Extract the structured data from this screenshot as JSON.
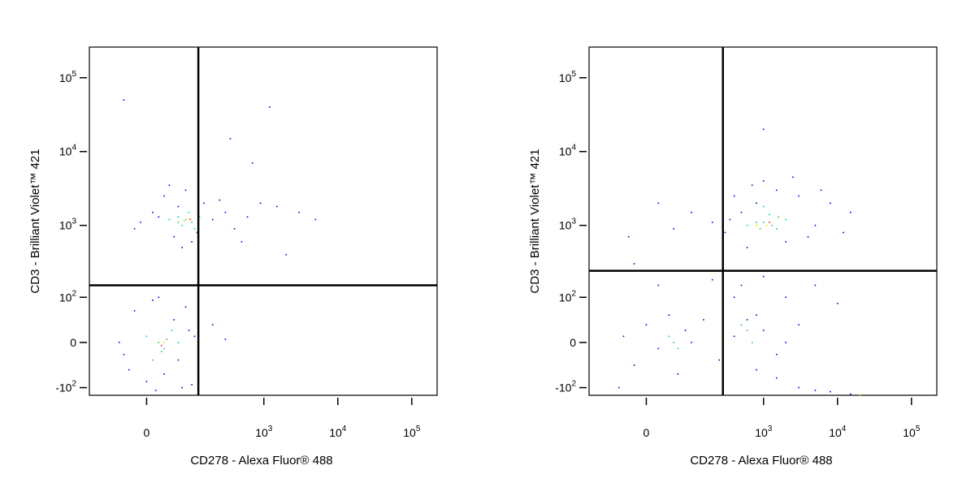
{
  "chart_data": [
    {
      "type": "scatter",
      "xlabel": "CD278 - Alexa Fluor® 488",
      "ylabel": "CD3 - Brilliant Violet™ 421",
      "xlim": [
        -150,
        220000
      ],
      "ylim": [
        -130,
        260000
      ],
      "xticks": [
        0,
        {
          "value": 1000,
          "label": "10",
          "sup": "3"
        },
        {
          "value": 10000,
          "label": "10",
          "sup": "4"
        },
        {
          "value": 100000,
          "label": "10",
          "sup": "5"
        }
      ],
      "yticks": [
        {
          "value": -100,
          "label": "-10",
          "sup": "2"
        },
        0,
        {
          "value": 100,
          "label": "10",
          "sup": "2"
        },
        {
          "value": 1000,
          "label": "10",
          "sup": "3"
        },
        {
          "value": 10000,
          "label": "10",
          "sup": "4"
        },
        {
          "value": 100000,
          "label": "10",
          "sup": "5"
        }
      ],
      "gates": {
        "x": 125,
        "y": 150
      },
      "series": [
        {
          "color": "#0000cc",
          "x": [
            -20,
            10,
            30,
            50,
            60,
            80,
            100,
            150,
            200,
            300,
            400,
            600,
            900,
            1500,
            3000,
            5000,
            -10,
            40,
            120,
            250,
            70,
            20,
            -40,
            350,
            700,
            1200,
            2000,
            500,
            -40,
            -20,
            0,
            10,
            30,
            50,
            70,
            90,
            -30,
            20,
            60,
            110,
            200,
            -50,
            80,
            15,
            300,
            100
          ],
          "y": [
            900,
            1500,
            2500,
            700,
            1800,
            3000,
            600,
            2000,
            1200,
            1500,
            900,
            1300,
            2000,
            1800,
            1500,
            1200,
            1100,
            3500,
            800,
            2200,
            500,
            1300,
            50000,
            15000,
            7000,
            40000,
            400,
            600,
            -20,
            60,
            -80,
            90,
            -60,
            40,
            -100,
            20,
            -50,
            100,
            -30,
            10,
            30,
            0,
            70,
            -110,
            5,
            -90
          ]
        },
        {
          "color": "#00c8c8",
          "x": [
            40,
            70,
            90,
            130,
            60,
            110,
            0,
            30,
            45,
            10,
            60
          ],
          "y": [
            1200,
            1000,
            1500,
            1300,
            1300,
            900,
            10,
            -10,
            20,
            -30,
            0
          ]
        },
        {
          "color": "#33cc33",
          "x": [
            80,
            100,
            60,
            20,
            35,
            25
          ],
          "y": [
            1200,
            1100,
            1100,
            0,
            5,
            -15
          ]
        },
        {
          "color": "#e6e600",
          "x": [
            90,
            75,
            30
          ],
          "y": [
            1250,
            1150,
            0
          ]
        },
        {
          "color": "#ee2222",
          "x": [
            95,
            25
          ],
          "y": [
            1200,
            -5
          ]
        }
      ]
    },
    {
      "type": "scatter",
      "xlabel": "CD278 - Alexa Fluor® 488",
      "ylabel": "CD3 - Brilliant Violet™ 421",
      "xlim": [
        -150,
        220000
      ],
      "ylim": [
        -130,
        260000
      ],
      "xticks": [
        0,
        {
          "value": 1000,
          "label": "10",
          "sup": "3"
        },
        {
          "value": 10000,
          "label": "10",
          "sup": "4"
        },
        {
          "value": 100000,
          "label": "10",
          "sup": "5"
        }
      ],
      "yticks": [
        {
          "value": -100,
          "label": "-10",
          "sup": "2"
        },
        0,
        {
          "value": 100,
          "label": "10",
          "sup": "2"
        },
        {
          "value": 1000,
          "label": "10",
          "sup": "3"
        },
        {
          "value": 10000,
          "label": "10",
          "sup": "4"
        },
        {
          "value": 100000,
          "label": "10",
          "sup": "5"
        }
      ],
      "gates": {
        "x": 280,
        "y": 240
      },
      "series": [
        {
          "color": "#0000cc",
          "x": [
            300,
            400,
            500,
            700,
            1000,
            1500,
            2000,
            3000,
            5000,
            8000,
            12000,
            15000,
            600,
            2500,
            4000,
            350,
            800,
            6000,
            200,
            100,
            50,
            20,
            -30,
            500,
            1000,
            2000,
            5000,
            800,
            3000,
            10000,
            1500,
            400,
            200,
            20,
            -20,
            -40,
            -20,
            0,
            20,
            40,
            60,
            80,
            100,
            150,
            250,
            400,
            600,
            800,
            1000,
            1500,
            2000,
            -50,
            3000,
            5000,
            8000,
            15000,
            1000
          ],
          "y": [
            800,
            2500,
            1500,
            3500,
            4000,
            3000,
            600,
            2500,
            1000,
            2000,
            800,
            1500,
            500,
            4500,
            700,
            1200,
            2000,
            3000,
            1100,
            1500,
            900,
            2000,
            700,
            150,
            200,
            100,
            150,
            50,
            30,
            80,
            -20,
            100,
            180,
            150,
            300,
            10,
            -40,
            30,
            -10,
            50,
            -60,
            20,
            0,
            40,
            -30,
            10,
            40,
            -50,
            20,
            -70,
            0,
            -100,
            -100,
            -110,
            -115,
            -125,
            20000
          ]
        },
        {
          "color": "#00c8c8",
          "x": [
            800,
            1200,
            1500,
            2000,
            600,
            1000,
            40,
            60,
            500,
            700
          ],
          "y": [
            1100,
            1400,
            900,
            1200,
            1000,
            1800,
            10,
            -10,
            30,
            0
          ]
        },
        {
          "color": "#33cc33",
          "x": [
            1000,
            1300,
            900,
            1600,
            600,
            50
          ],
          "y": [
            1100,
            1000,
            900,
            1300,
            20,
            0
          ]
        },
        {
          "color": "#e6e600",
          "x": [
            1100,
            800,
            20000
          ],
          "y": [
            1000,
            1000,
            -128
          ]
        },
        {
          "color": "#ee2222",
          "x": [
            1200
          ],
          "y": [
            1100
          ]
        }
      ]
    }
  ]
}
